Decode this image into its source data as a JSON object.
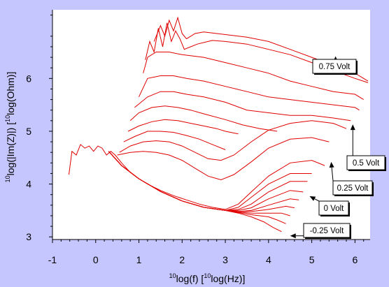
{
  "chart_data": {
    "type": "line",
    "xlabel": {
      "sup1": "10",
      "main1": "log(f) [",
      "sup2": "10",
      "main2": "log(Hz)]"
    },
    "ylabel": {
      "sup1": "10",
      "main1": "log(|Im(Z)|) [",
      "sup2": "10",
      "main2": "log(Ohm)]"
    },
    "xlim": [
      -1,
      6.35
    ],
    "ylim": [
      2.95,
      7.3
    ],
    "x_ticks": [
      -1,
      0,
      1,
      2,
      3,
      4,
      5,
      6
    ],
    "y_ticks": [
      3,
      4,
      5,
      6
    ],
    "grid": false,
    "series_color": "#e00000",
    "annotations": [
      {
        "text": "0.75 Volt",
        "arrow_to": [
          5.55,
          6.42
        ]
      },
      {
        "text": "0.5 Volt",
        "arrow_to": [
          5.95,
          5.13
        ]
      },
      {
        "text": "0.25 Volt",
        "arrow_to": [
          5.45,
          4.42
        ]
      },
      {
        "text": "0 Volt",
        "arrow_to": [
          4.95,
          3.77
        ]
      },
      {
        "text": "-0.25 Volt",
        "arrow_to": [
          4.5,
          3.02
        ]
      }
    ],
    "series": [
      {
        "x": [
          1.35,
          1.5,
          1.6,
          1.7,
          1.8,
          1.9,
          2.0,
          2.1,
          2.2,
          2.3,
          2.5,
          2.8,
          3.1,
          3.5,
          4.0,
          4.5,
          5.0,
          5.5,
          6.0,
          6.3
        ],
        "y": [
          6.7,
          7.0,
          6.8,
          7.1,
          6.9,
          7.15,
          6.85,
          6.75,
          6.8,
          6.85,
          6.88,
          6.85,
          6.82,
          6.78,
          6.7,
          6.55,
          6.4,
          6.25,
          6.1,
          5.95
        ]
      },
      {
        "x": [
          1.15,
          1.25,
          1.35,
          1.45,
          1.55,
          1.65,
          1.75,
          1.85,
          1.95,
          2.05,
          2.2,
          2.35,
          2.5,
          2.7,
          3.0,
          3.5,
          4.0,
          4.5,
          5.0,
          5.5,
          6.0,
          6.3
        ],
        "y": [
          6.35,
          6.7,
          6.5,
          6.95,
          6.6,
          7.05,
          6.7,
          6.9,
          6.75,
          6.55,
          6.6,
          6.65,
          6.68,
          6.72,
          6.7,
          6.65,
          6.55,
          6.45,
          6.3,
          6.15,
          6.0,
          5.92
        ]
      },
      {
        "x": [
          1.1,
          1.2,
          1.4,
          1.7,
          2.0,
          2.5,
          3.0,
          3.5,
          4.0,
          4.5,
          5.0,
          5.5,
          6.0,
          6.2
        ],
        "y": [
          6.1,
          6.4,
          6.5,
          6.5,
          6.45,
          6.4,
          6.3,
          6.2,
          6.1,
          5.95,
          5.85,
          5.75,
          5.7,
          5.6
        ]
      },
      {
        "x": [
          1.0,
          1.2,
          1.5,
          1.8,
          2.1,
          2.5,
          3.0,
          3.5,
          4.0,
          4.5,
          5.0,
          5.5,
          6.0,
          6.1
        ],
        "y": [
          5.65,
          6.0,
          6.05,
          6.05,
          6.0,
          5.95,
          5.85,
          5.75,
          5.65,
          5.6,
          5.55,
          5.5,
          5.45,
          5.4
        ]
      },
      {
        "x": [
          0.9,
          1.2,
          1.5,
          1.8,
          2.1,
          2.5,
          3.0,
          3.5,
          4.0,
          4.5,
          5.0,
          5.5,
          5.9
        ],
        "y": [
          5.45,
          5.65,
          5.75,
          5.75,
          5.7,
          5.65,
          5.55,
          5.4,
          5.35,
          5.3,
          5.3,
          5.25,
          5.2
        ]
      },
      {
        "x": [
          0.8,
          1.0,
          1.3,
          1.6,
          1.9,
          2.2,
          2.5,
          3.0,
          3.4,
          3.8,
          4.2
        ],
        "y": [
          5.2,
          5.35,
          5.45,
          5.48,
          5.45,
          5.4,
          5.33,
          5.22,
          5.12,
          5.05,
          5.0
        ]
      },
      {
        "x": [
          0.75,
          1.0,
          1.3,
          1.6,
          1.9,
          2.2,
          2.5,
          2.8,
          3.0,
          3.3
        ],
        "y": [
          5.0,
          5.1,
          5.18,
          5.22,
          5.2,
          5.15,
          5.1,
          5.05,
          5.0,
          4.95
        ]
      },
      {
        "x": [
          0.65,
          0.9,
          1.2,
          1.5,
          1.8,
          2.1,
          2.4,
          2.7,
          3.0
        ],
        "y": [
          4.8,
          4.9,
          5.0,
          5.0,
          4.98,
          4.92,
          4.85,
          4.75,
          4.65
        ]
      },
      {
        "x": [
          0.55,
          0.8,
          1.1,
          1.4,
          1.7,
          2.0,
          2.3,
          2.6,
          2.9,
          3.2,
          3.6,
          4.0,
          4.5,
          5.0,
          5.5,
          5.8
        ],
        "y": [
          4.6,
          4.72,
          4.8,
          4.82,
          4.8,
          4.72,
          4.6,
          4.48,
          4.45,
          4.55,
          4.8,
          5.02,
          5.15,
          5.2,
          5.15,
          5.05
        ]
      },
      {
        "x": [
          0.5,
          0.8,
          1.1,
          1.4,
          1.7,
          2.0,
          2.3,
          2.6,
          2.9,
          3.2,
          3.6,
          4.0,
          4.5,
          5.0,
          5.4
        ],
        "y": [
          4.55,
          4.6,
          4.62,
          4.6,
          4.55,
          4.45,
          4.3,
          4.15,
          4.08,
          4.18,
          4.42,
          4.68,
          4.85,
          4.88,
          4.8
        ]
      },
      {
        "x": [
          -0.62,
          -0.55,
          -0.45,
          -0.35,
          -0.25,
          -0.15,
          -0.05,
          0.05,
          0.15,
          0.25,
          0.35,
          0.45,
          0.6,
          0.8,
          1.0,
          1.2,
          1.5,
          1.8,
          2.1,
          2.4,
          2.7,
          3.0,
          3.3,
          3.6,
          4.0,
          4.5,
          5.0,
          5.3
        ],
        "y": [
          4.18,
          4.62,
          4.55,
          4.75,
          4.68,
          4.72,
          4.62,
          4.72,
          4.68,
          4.55,
          4.62,
          4.55,
          4.4,
          4.22,
          4.1,
          4.0,
          3.88,
          3.78,
          3.7,
          3.62,
          3.56,
          3.52,
          3.62,
          3.85,
          4.15,
          4.4,
          4.45,
          4.35
        ]
      },
      {
        "x": [
          0.3,
          0.6,
          1.0,
          1.5,
          2.0,
          2.5,
          3.0,
          3.3,
          3.6,
          4.0,
          4.5,
          5.0
        ],
        "y": [
          4.62,
          4.35,
          4.1,
          3.86,
          3.68,
          3.56,
          3.5,
          3.56,
          3.75,
          4.0,
          4.2,
          4.2
        ]
      },
      {
        "x": [
          0.3,
          0.6,
          1.0,
          1.5,
          2.0,
          2.5,
          3.0,
          3.3,
          3.6,
          4.0,
          4.5,
          4.9
        ],
        "y": [
          4.62,
          4.35,
          4.1,
          3.86,
          3.68,
          3.56,
          3.5,
          3.52,
          3.62,
          3.85,
          4.05,
          4.05
        ]
      },
      {
        "x": [
          0.3,
          0.6,
          1.0,
          1.5,
          2.0,
          2.5,
          3.0,
          3.3,
          3.6,
          4.0,
          4.5,
          4.8
        ],
        "y": [
          4.62,
          4.35,
          4.1,
          3.86,
          3.68,
          3.56,
          3.5,
          3.5,
          3.55,
          3.72,
          3.88,
          3.85
        ]
      },
      {
        "x": [
          0.3,
          0.6,
          1.0,
          1.5,
          2.0,
          2.5,
          3.0,
          3.3,
          3.6,
          4.0,
          4.5,
          4.7
        ],
        "y": [
          4.62,
          4.35,
          4.1,
          3.86,
          3.68,
          3.56,
          3.5,
          3.48,
          3.5,
          3.6,
          3.72,
          3.7
        ]
      },
      {
        "x": [
          0.3,
          0.6,
          1.0,
          1.5,
          2.0,
          2.5,
          3.0,
          3.3,
          3.6,
          4.0,
          4.4,
          4.6
        ],
        "y": [
          4.62,
          4.35,
          4.1,
          3.86,
          3.68,
          3.56,
          3.5,
          3.48,
          3.48,
          3.52,
          3.58,
          3.55
        ]
      },
      {
        "x": [
          0.3,
          0.6,
          1.0,
          1.5,
          2.0,
          2.5,
          3.0,
          3.3,
          3.6,
          4.0,
          4.3,
          4.5
        ],
        "y": [
          4.62,
          4.35,
          4.1,
          3.86,
          3.68,
          3.56,
          3.5,
          3.47,
          3.45,
          3.45,
          3.45,
          3.4
        ]
      },
      {
        "x": [
          0.3,
          0.6,
          1.0,
          1.5,
          2.0,
          2.5,
          3.0,
          3.3,
          3.6,
          4.0,
          4.2,
          4.4
        ],
        "y": [
          4.62,
          4.35,
          4.1,
          3.86,
          3.68,
          3.56,
          3.5,
          3.46,
          3.42,
          3.38,
          3.32,
          3.25
        ]
      },
      {
        "x": [
          0.3,
          0.6,
          1.0,
          1.5,
          2.0,
          2.5,
          3.0,
          3.3,
          3.6,
          3.9,
          4.1,
          4.3
        ],
        "y": [
          4.62,
          4.35,
          4.1,
          3.86,
          3.68,
          3.56,
          3.5,
          3.45,
          3.38,
          3.28,
          3.18,
          3.1
        ]
      }
    ]
  }
}
